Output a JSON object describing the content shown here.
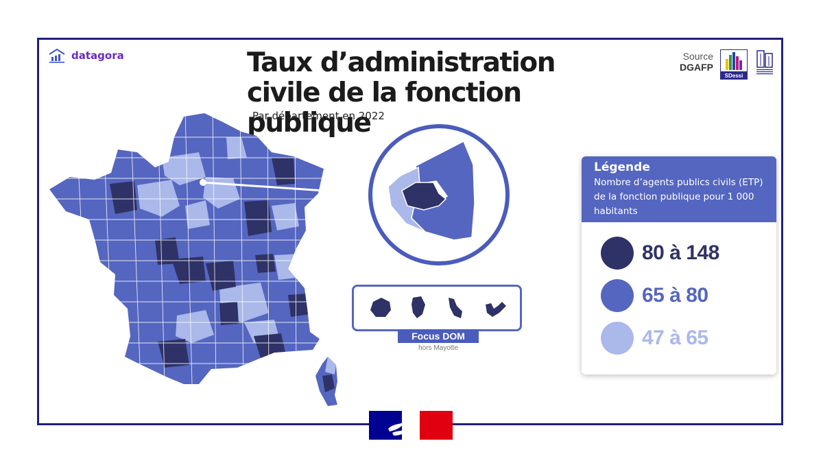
{
  "brand": {
    "name": "datagora"
  },
  "title": "Taux d’administration civile de la fonction publique",
  "subtitle": "Par département en 2022",
  "source": {
    "label": "Source",
    "value": "DGAFP",
    "logo_text": "SDessi"
  },
  "legend": {
    "title": "Légende",
    "description": "Nombre d’agents publics civils (ETP) de la fonction publique pour 1 000 habitants",
    "classes": [
      {
        "label": "80 à 148",
        "color": "#2e3266"
      },
      {
        "label": "65 à 80",
        "color": "#5566c0"
      },
      {
        "label": "47 à 65",
        "color": "#aab8ea"
      }
    ]
  },
  "dom": {
    "label": "Focus DOM",
    "sublabel": "hors Mayotte"
  },
  "colors": {
    "dark": "#2e3266",
    "mid": "#5566c0",
    "light": "#aab8ea",
    "frame": "#20207a",
    "flag_blue": "#000091",
    "flag_red": "#e1000f"
  }
}
